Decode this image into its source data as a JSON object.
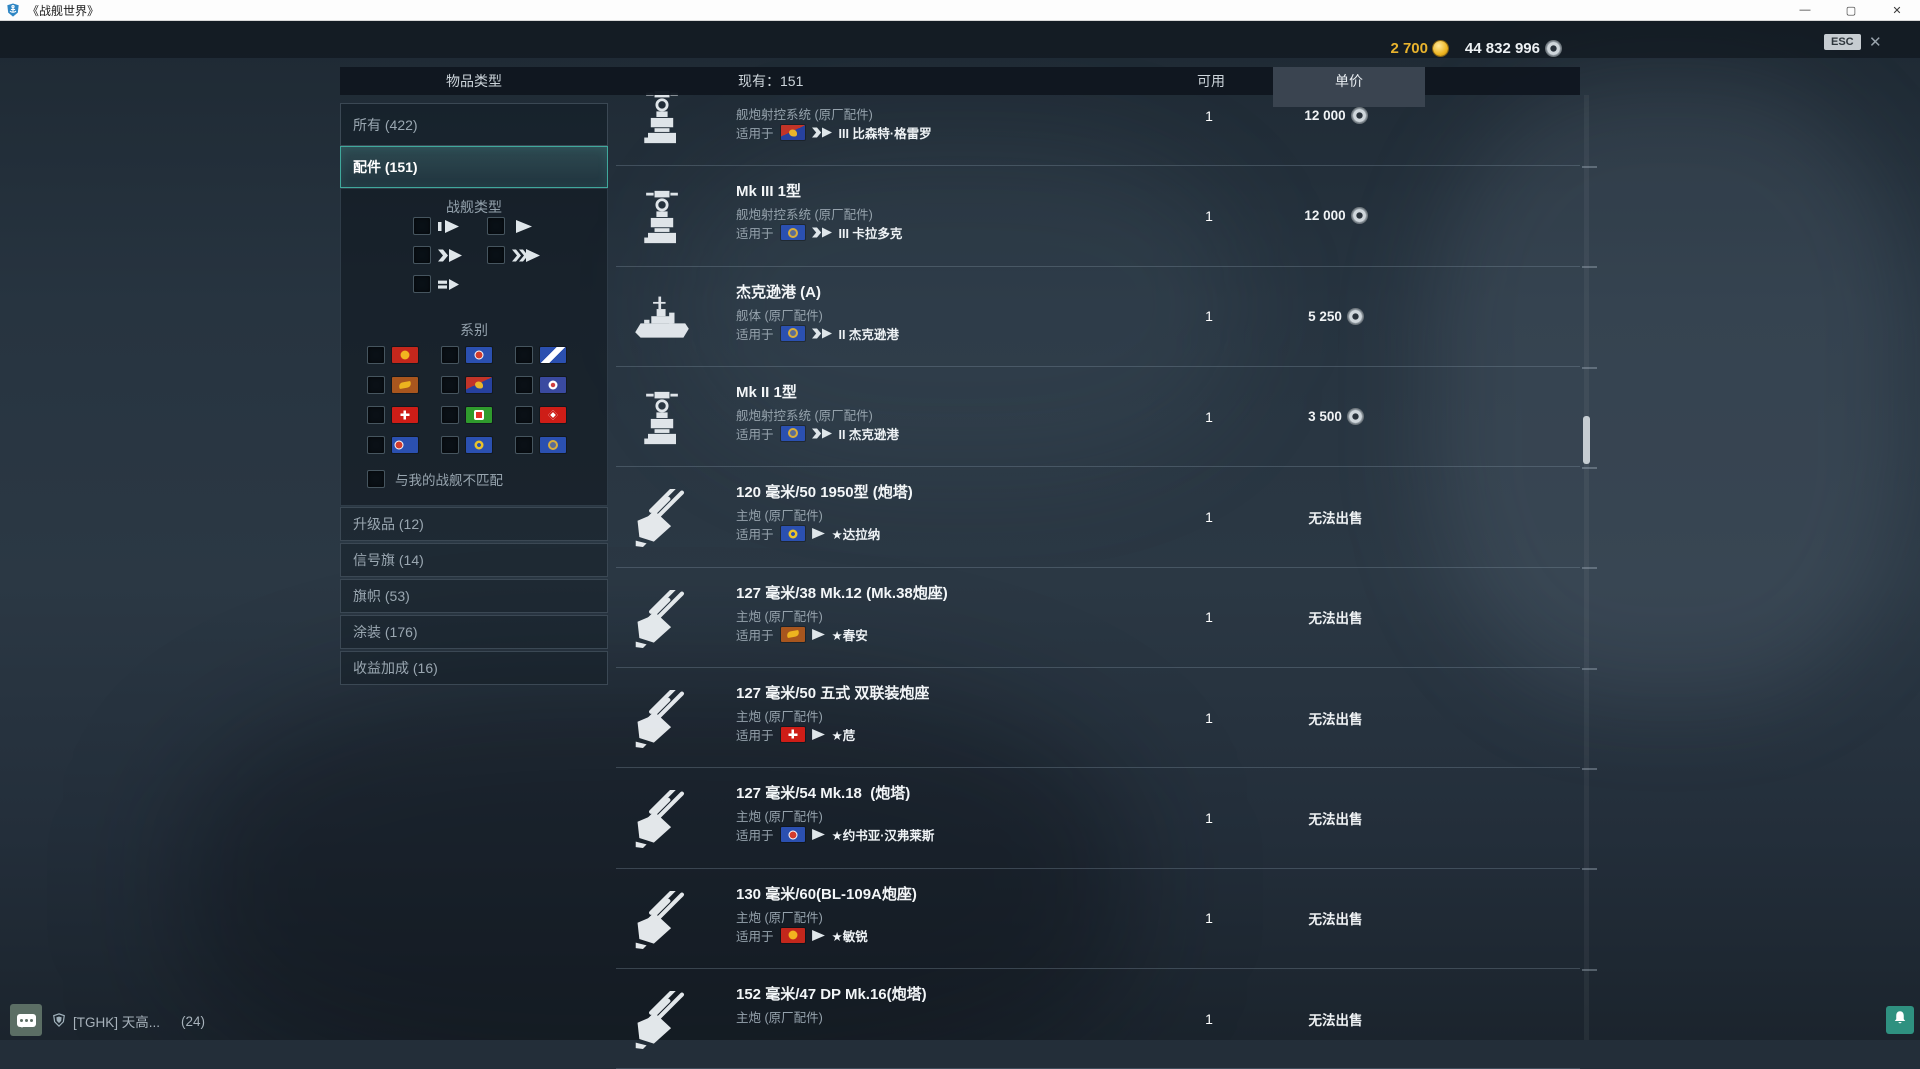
{
  "window": {
    "title": "《战舰世界》",
    "minimize": "—",
    "maximize": "▢",
    "close": "✕"
  },
  "topbar": {
    "gold": "2 700",
    "credits": "44 832 996",
    "esc": "ESC",
    "close": "✕"
  },
  "colors": {
    "gold_accent": "#e9b32d",
    "teal_selected": "#40a89c",
    "price_tab_bg": "#3a4450",
    "credits_silver": "#c9d0d5"
  },
  "header": {
    "item_type": "物品类型",
    "owned": "现有：151",
    "available": "可用",
    "unit_price": "单价"
  },
  "sidebar": {
    "all": "所有 (422)",
    "parts": "配件 (151)",
    "ship_type_title": "战舰类型",
    "nation_title": "系别",
    "mismatch": "与我的战舰不匹配",
    "nations": [
      "ussr",
      "usa",
      "uk",
      "pan-asia",
      "pan-america",
      "france",
      "japan",
      "italy",
      "germany",
      "netherlands",
      "europe",
      "commonwealth"
    ],
    "categories": [
      {
        "label": "升级品 (12)"
      },
      {
        "label": "信号旗 (14)"
      },
      {
        "label": "旗帜 (53)"
      },
      {
        "label": "涂装 (176)"
      },
      {
        "label": "收益加成 (16)"
      }
    ]
  },
  "labels": {
    "applies_to": "适用于"
  },
  "rows": [
    {
      "name": "",
      "desc": "舰炮射控系统 (原厂配件)",
      "flag": "pan-america",
      "cls": "cruiser",
      "ship": "III 比森特·格雷罗",
      "qty": "1",
      "price": "12 000",
      "coin": true,
      "icon": "fire-control"
    },
    {
      "name": "Mk III 1型",
      "desc": "舰炮射控系统 (原厂配件)",
      "flag": "commonwealth",
      "cls": "cruiser",
      "ship": "III 卡拉多克",
      "qty": "1",
      "price": "12 000",
      "coin": true,
      "icon": "fire-control"
    },
    {
      "name": "杰克逊港 (A)",
      "desc": "舰体 (原厂配件)",
      "flag": "commonwealth",
      "cls": "cruiser",
      "ship": "II 杰克逊港",
      "qty": "1",
      "price": "5 250",
      "coin": true,
      "icon": "hull"
    },
    {
      "name": "Mk II 1型",
      "desc": "舰炮射控系统 (原厂配件)",
      "flag": "commonwealth",
      "cls": "cruiser",
      "ship": "II 杰克逊港",
      "qty": "1",
      "price": "3 500",
      "coin": true,
      "icon": "fire-control"
    },
    {
      "name": "120 毫米/50 1950型 (炮塔)",
      "desc": "主炮 (原厂配件)",
      "flag": "europe",
      "cls": "destroyer",
      "ship": "★达拉纳",
      "qty": "1",
      "price": "无法出售",
      "coin": false,
      "icon": "main-gun"
    },
    {
      "name": "127 毫米/38 Mk.12 (Mk.38炮座)",
      "desc": "主炮 (原厂配件)",
      "flag": "pan-asia",
      "cls": "destroyer",
      "ship": "★春安",
      "qty": "1",
      "price": "无法出售",
      "coin": false,
      "icon": "main-gun"
    },
    {
      "name": "127 毫米/50 五式 双联装炮座",
      "desc": "主炮 (原厂配件)",
      "flag": "japan",
      "cls": "destroyer",
      "ship": "★苊",
      "qty": "1",
      "price": "无法出售",
      "coin": false,
      "icon": "main-gun"
    },
    {
      "name": "127 毫米/54 Mk.18  (炮塔)",
      "desc": "主炮 (原厂配件)",
      "flag": "usa",
      "cls": "destroyer",
      "ship": "★约书亚·汉弗莱斯",
      "qty": "1",
      "price": "无法出售",
      "coin": false,
      "icon": "main-gun"
    },
    {
      "name": "130 毫米/60(BL-109A炮座)",
      "desc": "主炮 (原厂配件)",
      "flag": "ussr",
      "cls": "destroyer",
      "ship": "★敏锐",
      "qty": "1",
      "price": "无法出售",
      "coin": false,
      "icon": "main-gun"
    },
    {
      "name": "152 毫米/47 DP Mk.16(炮塔)",
      "desc": "主炮 (原厂配件)",
      "flag": "",
      "cls": "",
      "ship": "",
      "qty": "1",
      "price": "无法出售",
      "coin": false,
      "icon": "main-gun"
    }
  ],
  "statusbar": {
    "clan": "[TGHK] 天高...",
    "count": "(24)"
  }
}
